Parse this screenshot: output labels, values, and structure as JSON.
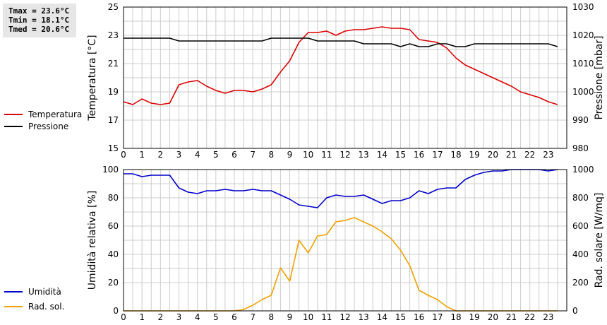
{
  "stats": {
    "tmax": "Tmax = 23.6°C",
    "tmin": "Tmin = 18.1°C",
    "tmed": "Tmed = 20.6°C"
  },
  "colors": {
    "temperature": "#dd0000",
    "pressure": "#000000",
    "humidity": "#0000cc",
    "solar": "#f0a000",
    "grid": "#cccccc"
  },
  "chart_data": [
    {
      "type": "line",
      "x_ticks": [
        "0",
        "1",
        "2",
        "3",
        "4",
        "5",
        "6",
        "7",
        "8",
        "9",
        "10",
        "11",
        "12",
        "13",
        "14",
        "15",
        "16",
        "17",
        "18",
        "19",
        "20",
        "21",
        "22",
        "23"
      ],
      "xlim": [
        0,
        24
      ],
      "ylabel": "Temperatura [°C]",
      "ylabel_right": "Pressione [mbar]",
      "ylim": [
        15,
        25
      ],
      "y_ticks": [
        "15",
        "17",
        "19",
        "21",
        "23",
        "25"
      ],
      "ylim_right": [
        980,
        1030
      ],
      "y_ticks_right": [
        "980",
        "990",
        "1000",
        "1010",
        "1020",
        "1030"
      ],
      "grid": true,
      "legend": [
        "Temperatura",
        "Pressione"
      ],
      "series": [
        {
          "name": "Temperatura",
          "axis": "left",
          "x": [
            0,
            0.5,
            1,
            1.5,
            2,
            2.5,
            3,
            3.5,
            4,
            4.5,
            5,
            5.5,
            6,
            6.5,
            7,
            7.5,
            8,
            8.5,
            9,
            9.5,
            10,
            10.5,
            11,
            11.5,
            12,
            12.5,
            13,
            13.5,
            14,
            14.5,
            15,
            15.5,
            16,
            16.5,
            17,
            17.5,
            18,
            18.5,
            19,
            19.5,
            20,
            20.5,
            21,
            21.5,
            22,
            22.5,
            23,
            23.5
          ],
          "values": [
            18.3,
            18.1,
            18.5,
            18.2,
            18.1,
            18.2,
            19.5,
            19.7,
            19.8,
            19.4,
            19.1,
            18.9,
            19.1,
            19.1,
            19.0,
            19.2,
            19.5,
            20.4,
            21.2,
            22.5,
            23.2,
            23.2,
            23.3,
            23.0,
            23.3,
            23.4,
            23.4,
            23.5,
            23.6,
            23.5,
            23.5,
            23.4,
            22.7,
            22.6,
            22.5,
            22.1,
            21.4,
            20.9,
            20.6,
            20.3,
            20.0,
            19.7,
            19.4,
            19.0,
            18.8,
            18.6,
            18.3,
            18.1
          ]
        },
        {
          "name": "Pressione",
          "axis": "right",
          "x": [
            0,
            0.5,
            1,
            1.5,
            2,
            2.5,
            3,
            3.5,
            4,
            4.5,
            5,
            5.5,
            6,
            6.5,
            7,
            7.5,
            8,
            8.5,
            9,
            9.5,
            10,
            10.5,
            11,
            11.5,
            12,
            12.5,
            13,
            13.5,
            14,
            14.5,
            15,
            15.5,
            16,
            16.5,
            17,
            17.5,
            18,
            18.5,
            19,
            19.5,
            20,
            20.5,
            21,
            21.5,
            22,
            22.5,
            23,
            23.5
          ],
          "values": [
            1019,
            1019,
            1019,
            1019,
            1019,
            1019,
            1018,
            1018,
            1018,
            1018,
            1018,
            1018,
            1018,
            1018,
            1018,
            1018,
            1019,
            1019,
            1019,
            1019,
            1019,
            1018,
            1018,
            1018,
            1018,
            1018,
            1017,
            1017,
            1017,
            1017,
            1016,
            1017,
            1016,
            1016,
            1017,
            1017,
            1016,
            1016,
            1017,
            1017,
            1017,
            1017,
            1017,
            1017,
            1017,
            1017,
            1017,
            1016
          ]
        }
      ]
    },
    {
      "type": "line",
      "x_ticks": [
        "0",
        "1",
        "2",
        "3",
        "4",
        "5",
        "6",
        "7",
        "8",
        "9",
        "10",
        "11",
        "12",
        "13",
        "14",
        "15",
        "16",
        "17",
        "18",
        "19",
        "20",
        "21",
        "22",
        "23"
      ],
      "xlim": [
        0,
        24
      ],
      "ylabel": "Umidità relativa [%]",
      "ylabel_right": "Rad. solare [W/mq]",
      "ylim": [
        0,
        100
      ],
      "y_ticks": [
        "0",
        "20",
        "40",
        "60",
        "80",
        "100"
      ],
      "ylim_right": [
        0,
        1000
      ],
      "y_ticks_right": [
        "0",
        "200",
        "400",
        "600",
        "800",
        "1000"
      ],
      "grid": true,
      "legend": [
        "Umidità",
        "Rad. sol."
      ],
      "series": [
        {
          "name": "Umidità",
          "axis": "left",
          "x": [
            0,
            0.5,
            1,
            1.5,
            2,
            2.5,
            3,
            3.5,
            4,
            4.5,
            5,
            5.5,
            6,
            6.5,
            7,
            7.5,
            8,
            8.5,
            9,
            9.5,
            10,
            10.5,
            11,
            11.5,
            12,
            12.5,
            13,
            13.5,
            14,
            14.5,
            15,
            15.5,
            16,
            16.5,
            17,
            17.5,
            18,
            18.5,
            19,
            19.5,
            20,
            20.5,
            21,
            21.5,
            22,
            22.5,
            23,
            23.5
          ],
          "values": [
            97,
            97,
            95,
            96,
            96,
            96,
            87,
            84,
            83,
            85,
            85,
            86,
            85,
            85,
            86,
            85,
            85,
            82,
            79,
            75,
            74,
            73,
            80,
            82,
            81,
            81,
            82,
            79,
            76,
            78,
            78,
            80,
            85,
            83,
            86,
            87,
            87,
            93,
            96,
            98,
            99,
            99,
            100,
            100,
            100,
            100,
            99,
            100
          ]
        },
        {
          "name": "Rad. sol.",
          "axis": "right",
          "x": [
            0,
            0.5,
            1,
            1.5,
            2,
            2.5,
            3,
            3.5,
            4,
            4.5,
            5,
            5.5,
            6,
            6.5,
            7,
            7.5,
            8,
            8.5,
            9,
            9.5,
            10,
            10.5,
            11,
            11.5,
            12,
            12.5,
            13,
            13.5,
            14,
            14.5,
            15,
            15.5,
            16,
            16.5,
            17,
            17.5,
            18,
            18.5,
            19,
            19.5,
            20,
            20.5,
            21,
            21.5,
            22,
            22.5,
            23,
            23.5
          ],
          "values": [
            0,
            0,
            0,
            0,
            0,
            0,
            0,
            0,
            0,
            0,
            0,
            0,
            0,
            10,
            40,
            80,
            110,
            305,
            210,
            500,
            410,
            530,
            540,
            630,
            640,
            660,
            630,
            600,
            560,
            510,
            430,
            320,
            145,
            110,
            80,
            30,
            0,
            0,
            0,
            0,
            0,
            0,
            0,
            0,
            0,
            0,
            0,
            0
          ]
        }
      ]
    }
  ]
}
